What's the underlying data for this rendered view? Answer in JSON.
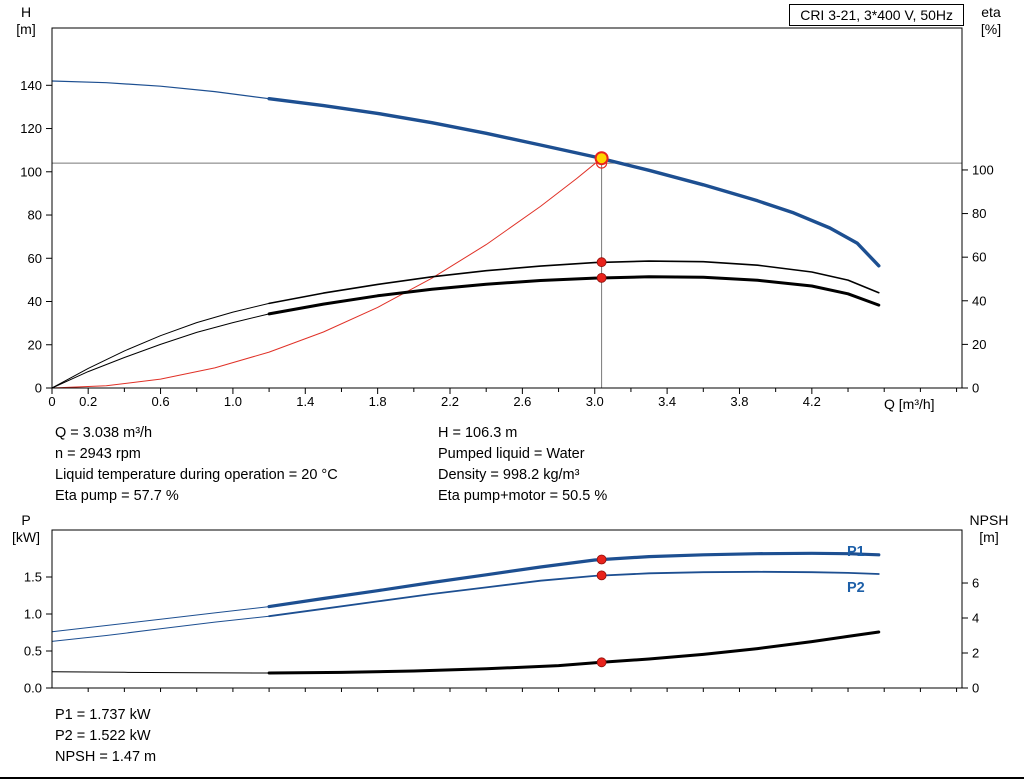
{
  "colors": {
    "blue": "#1d4f91",
    "black": "#000000",
    "red": "#e03127",
    "gray": "#787878",
    "marker_red": "#e8231c",
    "marker_yellow": "#ffd500",
    "label_blue": "#1d5fa8"
  },
  "info": {
    "top_left": [
      "Q = 3.038 m³/h",
      "n = 2943 rpm",
      "Liquid temperature during operation = 20 °C",
      "Eta pump = 57.7 %"
    ],
    "top_right": [
      "H = 106.3 m",
      "Pumped liquid = Water",
      "Density = 998.2 kg/m³",
      "Eta pump+motor = 50.5 %"
    ],
    "bottom": [
      "P1 = 1.737 kW",
      "P2 = 1.522 kW",
      "NPSH = 1.47 m"
    ]
  },
  "chart_data": [
    {
      "type": "line",
      "title": "CRI 3-21, 3*400 V, 50Hz",
      "xlabel": "Q [m³/h]",
      "ylabel": "H",
      "ylabel_unit": "[m]",
      "y2label": "eta",
      "y2label_unit": "[%]",
      "xlim": [
        0,
        5.03
      ],
      "ylim_left": [
        0,
        166.5
      ],
      "ylim_right": [
        0,
        165.1
      ],
      "grid": false,
      "x_ticks": [
        {
          "v": 0,
          "label": "0"
        },
        {
          "v": 0.2,
          "label": "0.2"
        },
        {
          "v": 0.6,
          "label": "0.6"
        },
        {
          "v": 1.0,
          "label": "1.0"
        },
        {
          "v": 1.4,
          "label": "1.4"
        },
        {
          "v": 1.8,
          "label": "1.8"
        },
        {
          "v": 2.2,
          "label": "2.2"
        },
        {
          "v": 2.6,
          "label": "2.6"
        },
        {
          "v": 3.0,
          "label": "3.0"
        },
        {
          "v": 3.4,
          "label": "3.4"
        },
        {
          "v": 3.8,
          "label": "3.8"
        },
        {
          "v": 4.2,
          "label": "4.2"
        }
      ],
      "x_minor": [
        0.4,
        0.8,
        1.2,
        1.6,
        2.0,
        2.4,
        2.8,
        3.2,
        3.6,
        4.0,
        4.4,
        4.6,
        4.8,
        5.0
      ],
      "left_ticks": [
        {
          "v": 0,
          "label": "0"
        },
        {
          "v": 20,
          "label": "20"
        },
        {
          "v": 40,
          "label": "40"
        },
        {
          "v": 60,
          "label": "60"
        },
        {
          "v": 80,
          "label": "80"
        },
        {
          "v": 100,
          "label": "100"
        },
        {
          "v": 120,
          "label": "120"
        },
        {
          "v": 140,
          "label": "140"
        }
      ],
      "right_ticks": [
        {
          "v": 0,
          "label": "0"
        },
        {
          "v": 20,
          "label": "20"
        },
        {
          "v": 40,
          "label": "40"
        },
        {
          "v": 60,
          "label": "60"
        },
        {
          "v": 80,
          "label": "80"
        },
        {
          "v": 100,
          "label": "100"
        }
      ],
      "series": [
        {
          "name": "crosshair-horizontal",
          "axis": "left",
          "color": "gray",
          "width": 1,
          "points": [
            [
              0,
              104
            ],
            [
              5.03,
              104
            ]
          ]
        },
        {
          "name": "crosshair-vertical",
          "axis": "left",
          "color": "gray",
          "width": 1,
          "points": [
            [
              3.038,
              106.3
            ],
            [
              3.038,
              0
            ]
          ]
        },
        {
          "name": "system-curve",
          "axis": "left",
          "color": "red",
          "width": 1,
          "points": [
            [
              0,
              0
            ],
            [
              0.3,
              1.0
            ],
            [
              0.6,
              4.1
            ],
            [
              0.9,
              9.3
            ],
            [
              1.2,
              16.6
            ],
            [
              1.5,
              25.9
            ],
            [
              1.8,
              37.3
            ],
            [
              2.1,
              50.8
            ],
            [
              2.4,
              66.3
            ],
            [
              2.7,
              84.0
            ],
            [
              2.9,
              96.9
            ],
            [
              3.038,
              106.3
            ]
          ]
        },
        {
          "name": "eta-pump-lead",
          "axis": "right",
          "color": "black",
          "width": 1,
          "points": [
            [
              0,
              0
            ],
            [
              0.2,
              9
            ],
            [
              0.4,
              17
            ],
            [
              0.6,
              24
            ],
            [
              0.8,
              30
            ],
            [
              1.0,
              34.8
            ],
            [
              1.2,
              38.8
            ]
          ]
        },
        {
          "name": "eta-pump",
          "axis": "right",
          "color": "black",
          "width": 1.6,
          "points": [
            [
              1.2,
              38.8
            ],
            [
              1.5,
              43.5
            ],
            [
              1.8,
              47.5
            ],
            [
              2.1,
              51.0
            ],
            [
              2.4,
              53.8
            ],
            [
              2.7,
              55.9
            ],
            [
              3.0,
              57.5
            ],
            [
              3.3,
              58.2
            ],
            [
              3.6,
              57.9
            ],
            [
              3.9,
              56.3
            ],
            [
              4.2,
              53.2
            ],
            [
              4.4,
              49.5
            ],
            [
              4.57,
              43.7
            ]
          ]
        },
        {
          "name": "eta-pump-motor-lead",
          "axis": "right",
          "color": "black",
          "width": 1,
          "points": [
            [
              0,
              0
            ],
            [
              0.2,
              7.5
            ],
            [
              0.4,
              14
            ],
            [
              0.6,
              20
            ],
            [
              0.8,
              25.5
            ],
            [
              1.0,
              30
            ],
            [
              1.2,
              34
            ]
          ]
        },
        {
          "name": "eta-pump-motor",
          "axis": "right",
          "color": "black",
          "width": 3,
          "points": [
            [
              1.2,
              34
            ],
            [
              1.5,
              38.5
            ],
            [
              1.8,
              42.3
            ],
            [
              2.1,
              45.3
            ],
            [
              2.4,
              47.6
            ],
            [
              2.7,
              49.3
            ],
            [
              3.0,
              50.4
            ],
            [
              3.3,
              51.0
            ],
            [
              3.6,
              50.8
            ],
            [
              3.9,
              49.4
            ],
            [
              4.2,
              46.8
            ],
            [
              4.4,
              43.2
            ],
            [
              4.57,
              38
            ]
          ]
        },
        {
          "name": "hq-curve-lead",
          "axis": "left",
          "color": "blue",
          "width": 1.2,
          "points": [
            [
              0,
              142
            ],
            [
              0.3,
              141.2
            ],
            [
              0.6,
              139.6
            ],
            [
              0.9,
              137.1
            ],
            [
              1.2,
              133.8
            ]
          ]
        },
        {
          "name": "hq-curve",
          "axis": "left",
          "color": "blue",
          "width": 3.4,
          "points": [
            [
              1.2,
              133.8
            ],
            [
              1.5,
              130.6
            ],
            [
              1.8,
              127.0
            ],
            [
              2.1,
              122.7
            ],
            [
              2.4,
              117.8
            ],
            [
              2.7,
              112.4
            ],
            [
              3.0,
              106.9
            ],
            [
              3.3,
              100.7
            ],
            [
              3.6,
              94.0
            ],
            [
              3.9,
              86.6
            ],
            [
              4.1,
              81.0
            ],
            [
              4.3,
              74.0
            ],
            [
              4.45,
              67.0
            ],
            [
              4.57,
              56.5
            ]
          ]
        }
      ],
      "markers": [
        {
          "name": "duty-open-marker",
          "q": 3.038,
          "v": 104,
          "axis": "left",
          "style": "open"
        },
        {
          "name": "duty-point-marker",
          "q": 3.038,
          "v": 106.3,
          "axis": "left",
          "style": "duty"
        },
        {
          "name": "eta-pump-marker",
          "q": 3.038,
          "v": 57.7,
          "axis": "right",
          "style": "dot"
        },
        {
          "name": "eta-pump-motor-marker",
          "q": 3.038,
          "v": 50.5,
          "axis": "right",
          "style": "dot"
        }
      ],
      "operating_point": {
        "q_m3h": 3.038,
        "h_m": 106.3,
        "eta_pump_pct": 57.7,
        "eta_pump_motor_pct": 50.5,
        "n_rpm": 2943
      }
    },
    {
      "type": "line",
      "title": "",
      "xlabel": "",
      "ylabel": "P",
      "ylabel_unit": "[kW]",
      "y2label": "NPSH",
      "y2label_unit": "[m]",
      "series_labels": {
        "p1": "P1",
        "p2": "P2"
      },
      "xlim": [
        0,
        5.03
      ],
      "ylim_left": [
        0,
        2.135
      ],
      "ylim_right": [
        0,
        9.03
      ],
      "grid": false,
      "x_ticks": [],
      "x_minor": [
        0.2,
        0.4,
        0.6,
        0.8,
        1.0,
        1.2,
        1.4,
        1.6,
        1.8,
        2.0,
        2.2,
        2.4,
        2.6,
        2.8,
        3.0,
        3.2,
        3.4,
        3.6,
        3.8,
        4.0,
        4.2,
        4.4,
        4.6,
        4.8,
        5.0
      ],
      "left_ticks": [
        {
          "v": 0,
          "label": "0.0"
        },
        {
          "v": 0.5,
          "label": "0.5"
        },
        {
          "v": 1.0,
          "label": "1.0"
        },
        {
          "v": 1.5,
          "label": "1.5"
        }
      ],
      "right_ticks": [
        {
          "v": 0,
          "label": "0"
        },
        {
          "v": 2,
          "label": "2"
        },
        {
          "v": 4,
          "label": "4"
        },
        {
          "v": 6,
          "label": "6"
        }
      ],
      "series": [
        {
          "name": "p2-curve-lead",
          "axis": "left",
          "color": "blue",
          "width": 1,
          "points": [
            [
              0,
              0.63
            ],
            [
              0.3,
              0.71
            ],
            [
              0.6,
              0.8
            ],
            [
              0.9,
              0.89
            ],
            [
              1.2,
              0.97
            ]
          ]
        },
        {
          "name": "p2-curve",
          "axis": "left",
          "color": "blue",
          "width": 1.8,
          "points": [
            [
              1.2,
              0.97
            ],
            [
              1.5,
              1.07
            ],
            [
              1.8,
              1.17
            ],
            [
              2.1,
              1.27
            ],
            [
              2.4,
              1.36
            ],
            [
              2.7,
              1.45
            ],
            [
              3.0,
              1.515
            ],
            [
              3.3,
              1.55
            ],
            [
              3.6,
              1.565
            ],
            [
              3.9,
              1.57
            ],
            [
              4.2,
              1.565
            ],
            [
              4.4,
              1.555
            ],
            [
              4.57,
              1.54
            ]
          ]
        },
        {
          "name": "p1-curve-lead",
          "axis": "left",
          "color": "blue",
          "width": 1,
          "points": [
            [
              0,
              0.76
            ],
            [
              0.3,
              0.845
            ],
            [
              0.6,
              0.93
            ],
            [
              0.9,
              1.015
            ],
            [
              1.2,
              1.1
            ]
          ]
        },
        {
          "name": "p1-curve",
          "axis": "left",
          "color": "blue",
          "width": 3.2,
          "points": [
            [
              1.2,
              1.1
            ],
            [
              1.5,
              1.21
            ],
            [
              1.8,
              1.315
            ],
            [
              2.1,
              1.425
            ],
            [
              2.4,
              1.53
            ],
            [
              2.7,
              1.635
            ],
            [
              3.0,
              1.73
            ],
            [
              3.3,
              1.775
            ],
            [
              3.6,
              1.8
            ],
            [
              3.9,
              1.815
            ],
            [
              4.2,
              1.82
            ],
            [
              4.4,
              1.815
            ],
            [
              4.57,
              1.8
            ]
          ]
        },
        {
          "name": "npsh-curve-lead",
          "axis": "right",
          "color": "black",
          "width": 1,
          "points": [
            [
              0,
              0.93
            ],
            [
              0.4,
              0.9
            ],
            [
              0.8,
              0.87
            ],
            [
              1.2,
              0.86
            ]
          ]
        },
        {
          "name": "npsh-curve",
          "axis": "right",
          "color": "black",
          "width": 3,
          "points": [
            [
              1.2,
              0.86
            ],
            [
              1.6,
              0.89
            ],
            [
              2.0,
              0.97
            ],
            [
              2.4,
              1.1
            ],
            [
              2.8,
              1.28
            ],
            [
              3.038,
              1.47
            ],
            [
              3.3,
              1.66
            ],
            [
              3.6,
              1.92
            ],
            [
              3.9,
              2.25
            ],
            [
              4.2,
              2.65
            ],
            [
              4.4,
              2.95
            ],
            [
              4.57,
              3.2
            ]
          ]
        }
      ],
      "markers": [
        {
          "name": "p1-marker",
          "q": 3.038,
          "v": 1.737,
          "axis": "left",
          "style": "dot"
        },
        {
          "name": "p2-marker",
          "q": 3.038,
          "v": 1.522,
          "axis": "left",
          "style": "dot"
        },
        {
          "name": "npsh-marker",
          "q": 3.038,
          "v": 1.47,
          "axis": "right",
          "style": "dot"
        }
      ],
      "operating_point": {
        "p1_kw": 1.737,
        "p2_kw": 1.522,
        "npsh_m": 1.47
      }
    }
  ]
}
